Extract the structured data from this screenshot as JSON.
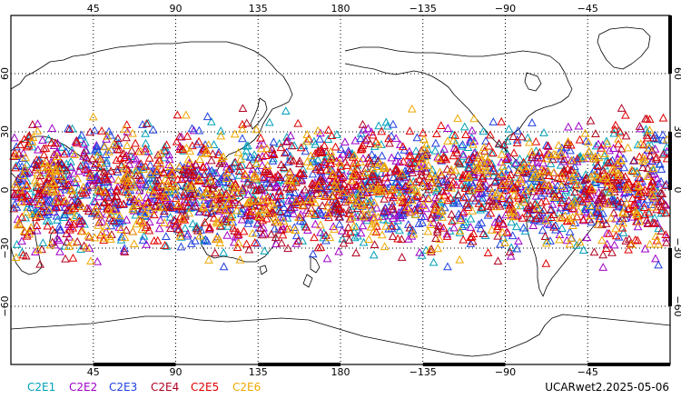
{
  "chart_data": {
    "type": "scatter",
    "projection": "equirectangular",
    "center_longitude": 180,
    "xlim": [
      0,
      360
    ],
    "ylim": [
      -90,
      90
    ],
    "grid": true,
    "grid_style": "dotted",
    "x_ticks": [
      {
        "lon": 45,
        "label": "45"
      },
      {
        "lon": 90,
        "label": "90"
      },
      {
        "lon": 135,
        "label": "135"
      },
      {
        "lon": 180,
        "label": "180"
      },
      {
        "lon": 225,
        "label": "−135"
      },
      {
        "lon": 270,
        "label": "−90"
      },
      {
        "lon": 315,
        "label": "−45"
      }
    ],
    "y_ticks": [
      {
        "lat": 60,
        "label": "60"
      },
      {
        "lat": 30,
        "label": "30"
      },
      {
        "lat": 0,
        "label": "0"
      },
      {
        "lat": -30,
        "label": "−30"
      },
      {
        "lat": -60,
        "label": "−60"
      }
    ],
    "marker": "triangle-open",
    "lat_band": [
      -45,
      45
    ],
    "series": [
      {
        "name": "C2E1",
        "color": "#00a0b8"
      },
      {
        "name": "C2E2",
        "color": "#a000c8"
      },
      {
        "name": "C2E3",
        "color": "#2040e0"
      },
      {
        "name": "C2E4",
        "color": "#b00020"
      },
      {
        "name": "C2E5",
        "color": "#e00000"
      },
      {
        "name": "C2E6",
        "color": "#f0a800"
      }
    ],
    "legend_position": "bottom-left"
  },
  "footer": {
    "product_label": "UCARwet2.2025-05-06"
  },
  "icons": {
    "marker_icon": "triangle-icon"
  }
}
